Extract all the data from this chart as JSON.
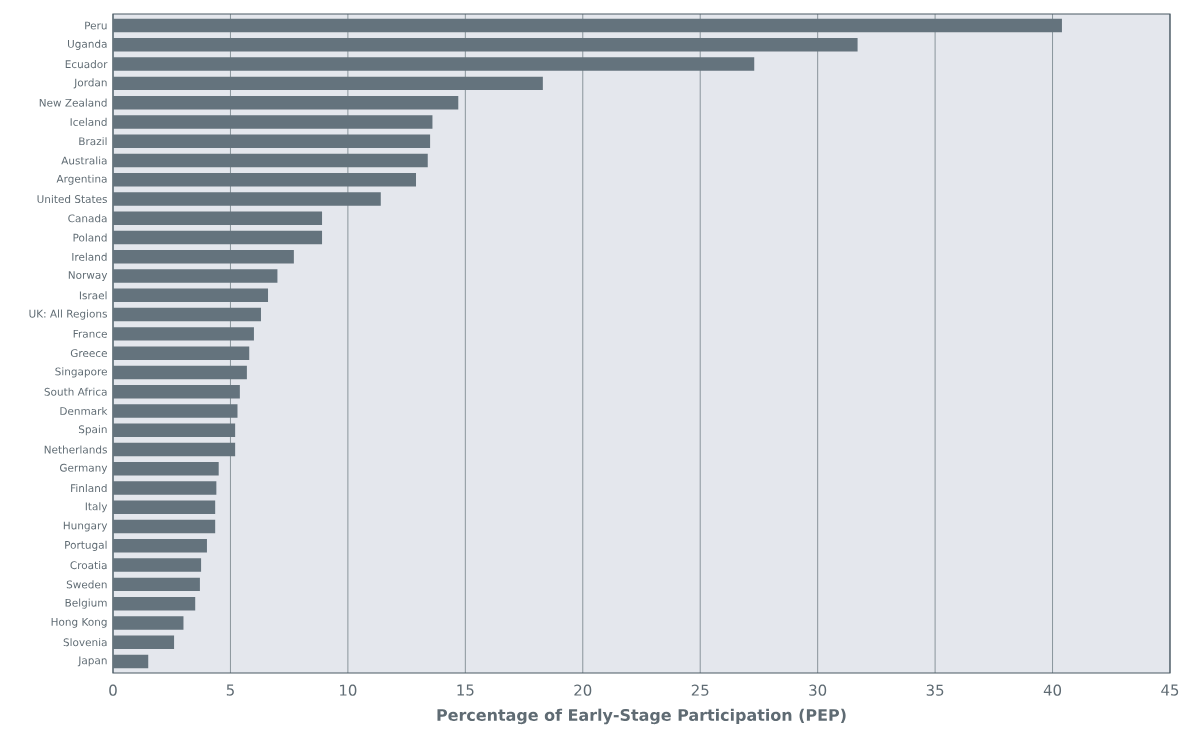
{
  "chart_data": {
    "type": "bar",
    "orientation": "horizontal",
    "xlabel": "Percentage of Early-Stage Participation (PEP)",
    "categories": [
      "Peru",
      "Uganda",
      "Ecuador",
      "Jordan",
      "New Zealand",
      "Iceland",
      "Brazil",
      "Australia",
      "Argentina",
      "United States",
      "Canada",
      "Poland",
      "Ireland",
      "Norway",
      "Israel",
      "UK: All Regions",
      "France",
      "Greece",
      "Singapore",
      "South Africa",
      "Denmark",
      "Spain",
      "Netherlands",
      "Germany",
      "Finland",
      "Italy",
      "Hungary",
      "Portugal",
      "Croatia",
      "Sweden",
      "Belgium",
      "Hong Kong",
      "Slovenia",
      "Japan"
    ],
    "values": [
      40.4,
      31.7,
      27.3,
      18.3,
      14.7,
      13.6,
      13.5,
      13.4,
      12.9,
      11.4,
      8.9,
      8.9,
      7.7,
      7.0,
      6.6,
      6.3,
      6.0,
      5.8,
      5.7,
      5.4,
      5.3,
      5.2,
      5.2,
      4.5,
      4.4,
      4.35,
      4.35,
      4.0,
      3.75,
      3.7,
      3.5,
      3.0,
      2.6,
      1.5
    ],
    "color": "#64737d",
    "xlim": [
      0,
      45
    ],
    "xticks": [
      0,
      5,
      10,
      15,
      20,
      25,
      30,
      35,
      40,
      45
    ],
    "grid": "x"
  }
}
